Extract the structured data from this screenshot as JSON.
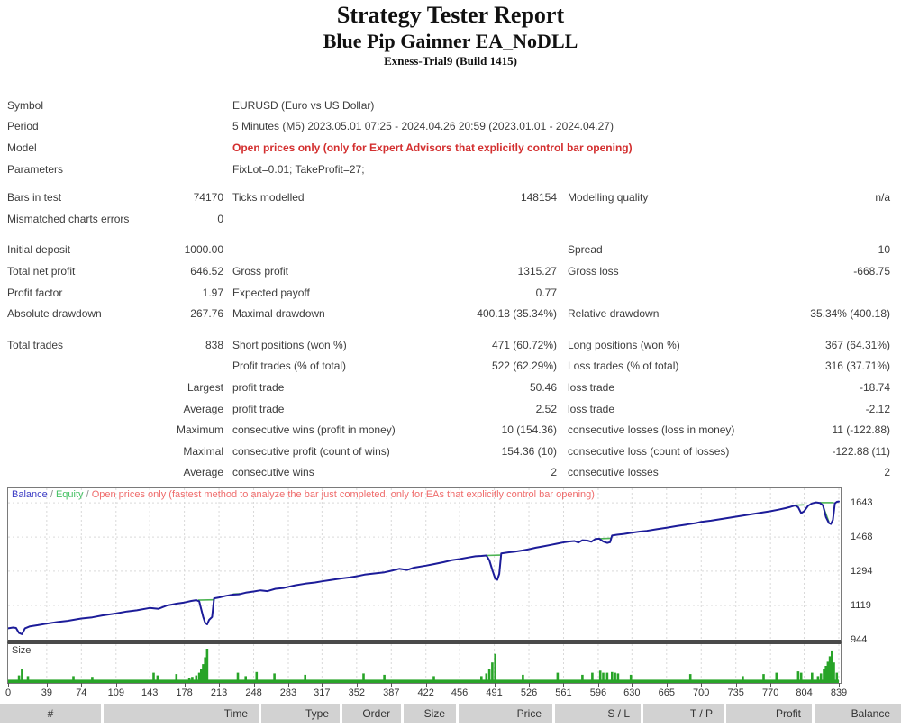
{
  "header": {
    "title": "Strategy Tester Report",
    "subtitle": "Blue Pip Gainner EA_NoDLL",
    "server": "Exness-Trial9 (Build 1415)"
  },
  "stats": {
    "info_rows": [
      {
        "label": "Symbol",
        "value": "EURUSD (Euro vs US Dollar)",
        "red": false
      },
      {
        "label": "Period",
        "value": "5 Minutes (M5) 2023.05.01 07:25 - 2024.04.26 20:59 (2023.01.01 - 2024.04.27)",
        "red": false
      },
      {
        "label": "Model",
        "value": "Open prices only (only for Expert Advisors that explicitly control bar opening)",
        "red": true
      },
      {
        "label": "Parameters",
        "value": "FixLot=0.01; TakeProfit=27;",
        "red": false
      }
    ],
    "sections": [
      [
        [
          "Bars in test",
          "74170",
          "Ticks modelled",
          "148154",
          "Modelling quality",
          "n/a"
        ],
        [
          "Mismatched charts errors",
          "0",
          "",
          "",
          "",
          ""
        ]
      ],
      [
        [
          "Initial deposit",
          "1000.00",
          "",
          "",
          "Spread",
          "10"
        ],
        [
          "Total net profit",
          "646.52",
          "Gross profit",
          "1315.27",
          "Gross loss",
          "-668.75"
        ],
        [
          "Profit factor",
          "1.97",
          "Expected payoff",
          "0.77",
          "",
          ""
        ],
        [
          "Absolute drawdown",
          "267.76",
          "Maximal drawdown",
          "400.18 (35.34%)",
          "Relative drawdown",
          "35.34% (400.18)"
        ]
      ],
      [
        [
          "Total trades",
          "838",
          "Short positions (won %)",
          "471 (60.72%)",
          "Long positions (won %)",
          "367 (64.31%)"
        ],
        [
          "",
          "",
          "Profit trades (% of total)",
          "522 (62.29%)",
          "Loss trades (% of total)",
          "316 (37.71%)"
        ],
        [
          "",
          "Largest",
          "profit trade",
          "50.46",
          "loss trade",
          "-18.74"
        ],
        [
          "",
          "Average",
          "profit trade",
          "2.52",
          "loss trade",
          "-2.12"
        ],
        [
          "",
          "Maximum",
          "consecutive wins (profit in money)",
          "10 (154.36)",
          "consecutive losses (loss in money)",
          "11 (-122.88)"
        ],
        [
          "",
          "Maximal",
          "consecutive profit (count of wins)",
          "154.36 (10)",
          "consecutive loss (count of losses)",
          "-122.88 (11)"
        ],
        [
          "",
          "Average",
          "consecutive wins",
          "2",
          "consecutive losses",
          "2"
        ]
      ]
    ]
  },
  "chart_data": {
    "type": "line",
    "legend": {
      "balance_label": "Balance",
      "equity_label": "Equity",
      "sep": " / ",
      "note": "Open prices only (fastest method to analyze the bar just completed, only for EAs that explicitly control bar opening)"
    },
    "x_ticks": [
      0,
      39,
      74,
      109,
      143,
      178,
      213,
      248,
      283,
      317,
      352,
      387,
      422,
      456,
      491,
      526,
      561,
      596,
      630,
      665,
      700,
      735,
      770,
      804,
      839
    ],
    "y_ticks": [
      1643,
      1468,
      1294,
      1119,
      944
    ],
    "xlim": [
      0,
      839
    ],
    "ylim": [
      944,
      1717
    ],
    "series": [
      {
        "name": "Balance",
        "color": "#1c1c99",
        "points": [
          [
            0,
            1002
          ],
          [
            5,
            1006
          ],
          [
            8,
            1004
          ],
          [
            11,
            978
          ],
          [
            14,
            972
          ],
          [
            17,
            1002
          ],
          [
            22,
            1012
          ],
          [
            30,
            1018
          ],
          [
            39,
            1026
          ],
          [
            50,
            1034
          ],
          [
            60,
            1040
          ],
          [
            74,
            1052
          ],
          [
            85,
            1058
          ],
          [
            95,
            1068
          ],
          [
            109,
            1078
          ],
          [
            120,
            1088
          ],
          [
            130,
            1094
          ],
          [
            143,
            1106
          ],
          [
            152,
            1102
          ],
          [
            160,
            1118
          ],
          [
            170,
            1128
          ],
          [
            178,
            1134
          ],
          [
            185,
            1142
          ],
          [
            190,
            1146
          ],
          [
            193,
            1140
          ],
          [
            195,
            1100
          ],
          [
            197,
            1060
          ],
          [
            199,
            1030
          ],
          [
            201,
            1022
          ],
          [
            203,
            1045
          ],
          [
            206,
            1060
          ],
          [
            208,
            1155
          ],
          [
            213,
            1160
          ],
          [
            220,
            1168
          ],
          [
            227,
            1174
          ],
          [
            233,
            1176
          ],
          [
            240,
            1184
          ],
          [
            248,
            1190
          ],
          [
            255,
            1196
          ],
          [
            262,
            1192
          ],
          [
            270,
            1204
          ],
          [
            278,
            1208
          ],
          [
            283,
            1214
          ],
          [
            290,
            1222
          ],
          [
            300,
            1230
          ],
          [
            310,
            1236
          ],
          [
            317,
            1242
          ],
          [
            325,
            1248
          ],
          [
            335,
            1256
          ],
          [
            345,
            1262
          ],
          [
            352,
            1268
          ],
          [
            360,
            1276
          ],
          [
            370,
            1282
          ],
          [
            380,
            1288
          ],
          [
            387,
            1296
          ],
          [
            395,
            1306
          ],
          [
            403,
            1300
          ],
          [
            410,
            1312
          ],
          [
            422,
            1322
          ],
          [
            430,
            1330
          ],
          [
            440,
            1340
          ],
          [
            448,
            1350
          ],
          [
            456,
            1356
          ],
          [
            465,
            1364
          ],
          [
            472,
            1370
          ],
          [
            478,
            1372
          ],
          [
            483,
            1374
          ],
          [
            486,
            1350
          ],
          [
            489,
            1300
          ],
          [
            492,
            1255
          ],
          [
            494,
            1250
          ],
          [
            496,
            1280
          ],
          [
            498,
            1385
          ],
          [
            505,
            1390
          ],
          [
            512,
            1394
          ],
          [
            520,
            1400
          ],
          [
            526,
            1406
          ],
          [
            533,
            1414
          ],
          [
            540,
            1420
          ],
          [
            548,
            1428
          ],
          [
            554,
            1434
          ],
          [
            560,
            1440
          ],
          [
            566,
            1445
          ],
          [
            572,
            1448
          ],
          [
            576,
            1440
          ],
          [
            580,
            1452
          ],
          [
            585,
            1450
          ],
          [
            589,
            1444
          ],
          [
            593,
            1458
          ],
          [
            597,
            1460
          ],
          [
            601,
            1445
          ],
          [
            605,
            1438
          ],
          [
            608,
            1442
          ],
          [
            610,
            1476
          ],
          [
            615,
            1480
          ],
          [
            622,
            1484
          ],
          [
            630,
            1490
          ],
          [
            638,
            1496
          ],
          [
            645,
            1500
          ],
          [
            655,
            1508
          ],
          [
            665,
            1516
          ],
          [
            675,
            1524
          ],
          [
            685,
            1532
          ],
          [
            695,
            1540
          ],
          [
            700,
            1546
          ],
          [
            710,
            1552
          ],
          [
            720,
            1560
          ],
          [
            730,
            1568
          ],
          [
            735,
            1572
          ],
          [
            745,
            1580
          ],
          [
            755,
            1588
          ],
          [
            765,
            1596
          ],
          [
            770,
            1600
          ],
          [
            778,
            1608
          ],
          [
            785,
            1616
          ],
          [
            790,
            1622
          ],
          [
            795,
            1630
          ],
          [
            798,
            1620
          ],
          [
            801,
            1590
          ],
          [
            804,
            1600
          ],
          [
            808,
            1628
          ],
          [
            812,
            1640
          ],
          [
            816,
            1645
          ],
          [
            820,
            1642
          ],
          [
            823,
            1630
          ],
          [
            826,
            1570
          ],
          [
            829,
            1540
          ],
          [
            831,
            1535
          ],
          [
            833,
            1555
          ],
          [
            835,
            1640
          ],
          [
            837,
            1648
          ],
          [
            839,
            1650
          ]
        ]
      },
      {
        "name": "Equity",
        "color": "#4db453",
        "segments": [
          [
            [
              192,
              1146
            ],
            [
              207,
              1148
            ]
          ],
          [
            [
              227,
              1177
            ],
            [
              234,
              1179
            ]
          ],
          [
            [
              483,
              1374
            ],
            [
              497,
              1376
            ]
          ],
          [
            [
              597,
              1460
            ],
            [
              609,
              1462
            ]
          ],
          [
            [
              795,
              1631
            ],
            [
              804,
              1633
            ]
          ],
          [
            [
              820,
              1644
            ],
            [
              834,
              1644
            ]
          ],
          [
            [
              823,
              1628
            ],
            [
              829,
              1545
            ]
          ]
        ]
      }
    ],
    "size_panel": {
      "label": "Size",
      "color": "#28a428",
      "baseline_frac": 0.09,
      "spikes": [
        [
          11,
          0.22
        ],
        [
          14,
          0.42
        ],
        [
          20,
          0.2
        ],
        [
          66,
          0.2
        ],
        [
          85,
          0.18
        ],
        [
          147,
          0.3
        ],
        [
          151,
          0.22
        ],
        [
          170,
          0.26
        ],
        [
          183,
          0.14
        ],
        [
          186,
          0.18
        ],
        [
          190,
          0.22
        ],
        [
          193,
          0.3
        ],
        [
          195,
          0.4
        ],
        [
          197,
          0.55
        ],
        [
          199,
          0.75
        ],
        [
          201,
          1.0
        ],
        [
          232,
          0.3
        ],
        [
          240,
          0.2
        ],
        [
          251,
          0.32
        ],
        [
          269,
          0.28
        ],
        [
          300,
          0.24
        ],
        [
          359,
          0.28
        ],
        [
          380,
          0.24
        ],
        [
          430,
          0.2
        ],
        [
          478,
          0.2
        ],
        [
          483,
          0.28
        ],
        [
          486,
          0.4
        ],
        [
          489,
          0.6
        ],
        [
          492,
          0.85
        ],
        [
          520,
          0.24
        ],
        [
          555,
          0.3
        ],
        [
          580,
          0.24
        ],
        [
          590,
          0.3
        ],
        [
          598,
          0.36
        ],
        [
          601,
          0.3
        ],
        [
          605,
          0.3
        ],
        [
          610,
          0.32
        ],
        [
          613,
          0.3
        ],
        [
          616,
          0.28
        ],
        [
          629,
          0.24
        ],
        [
          689,
          0.26
        ],
        [
          742,
          0.2
        ],
        [
          763,
          0.26
        ],
        [
          776,
          0.3
        ],
        [
          798,
          0.34
        ],
        [
          801,
          0.3
        ],
        [
          812,
          0.3
        ],
        [
          818,
          0.2
        ],
        [
          821,
          0.28
        ],
        [
          824,
          0.4
        ],
        [
          826,
          0.5
        ],
        [
          828,
          0.62
        ],
        [
          830,
          0.78
        ],
        [
          832,
          0.95
        ],
        [
          834,
          0.6
        ],
        [
          837,
          0.3
        ]
      ]
    }
  },
  "bottom_table": {
    "columns": [
      "#",
      "Time",
      "Type",
      "Order",
      "Size",
      "Price",
      "S / L",
      "T / P",
      "Profit",
      "Balance"
    ]
  },
  "colors": {
    "model_red": "#d32f2f",
    "legend_note_red": "#ef6b6b",
    "balance_blue": "#1c1c99",
    "equity_green": "#4db453",
    "size_green": "#28a428",
    "grid": "#d9d9d9",
    "text": "#3c3c3c",
    "header_cell_bg": "#d2d2d2",
    "panel_border": "#7a7a7a"
  }
}
